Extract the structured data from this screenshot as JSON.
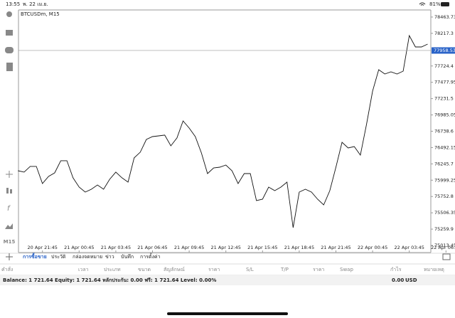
{
  "status_bar": {
    "time": "13:55",
    "date": "พ. 22 เม.ย.",
    "battery": "81%"
  },
  "sidebar": {
    "timeframe": "M15"
  },
  "chart_data": {
    "type": "line",
    "title": "BTCUSDm, M15",
    "x": [
      "20 Apr 19:45",
      "20 Apr 20:15",
      "20 Apr 20:45",
      "20 Apr 21:15",
      "20 Apr 21:45",
      "20 Apr 22:15",
      "20 Apr 22:45",
      "20 Apr 23:15",
      "20 Apr 23:45",
      "21 Apr 00:15",
      "21 Apr 00:45",
      "21 Apr 01:15",
      "21 Apr 01:45",
      "21 Apr 02:15",
      "21 Apr 02:45",
      "21 Apr 03:15",
      "21 Apr 03:45",
      "21 Apr 04:15",
      "21 Apr 04:45",
      "21 Apr 05:15",
      "21 Apr 05:45",
      "21 Apr 06:15",
      "21 Apr 06:45",
      "21 Apr 07:15",
      "21 Apr 07:45",
      "21 Apr 08:15",
      "21 Apr 08:45",
      "21 Apr 09:15",
      "21 Apr 09:45",
      "21 Apr 10:15",
      "21 Apr 10:45",
      "21 Apr 11:15",
      "21 Apr 11:45",
      "21 Apr 12:15",
      "21 Apr 12:45",
      "21 Apr 13:15",
      "21 Apr 13:45",
      "21 Apr 14:15",
      "21 Apr 14:45",
      "21 Apr 15:15",
      "21 Apr 15:45",
      "21 Apr 16:15",
      "21 Apr 16:45",
      "21 Apr 17:15",
      "21 Apr 17:45",
      "21 Apr 18:15",
      "21 Apr 18:45",
      "21 Apr 19:15",
      "21 Apr 19:45",
      "21 Apr 20:15",
      "21 Apr 20:45",
      "21 Apr 21:15",
      "21 Apr 21:45",
      "21 Apr 22:15",
      "21 Apr 22:45",
      "21 Apr 23:15",
      "21 Apr 23:45",
      "22 Apr 00:15",
      "22 Apr 00:45",
      "22 Apr 01:15",
      "22 Apr 01:45",
      "22 Apr 02:15",
      "22 Apr 02:45",
      "22 Apr 03:15",
      "22 Apr 03:45",
      "22 Apr 04:15",
      "22 Apr 04:45",
      "22 Apr 05:15"
    ],
    "series": [
      {
        "color": "#111111",
        "values": [
          76142,
          76121,
          76207,
          76207,
          75949,
          76056,
          76110,
          76293,
          76293,
          76035,
          75895,
          75820,
          75863,
          75927,
          75863,
          76013,
          76121,
          76035,
          75970,
          76336,
          76422,
          76615,
          76658,
          76669,
          76680,
          76518,
          76637,
          76894,
          76787,
          76658,
          76411,
          76099,
          76185,
          76196,
          76228,
          76142,
          75949,
          76099,
          76099,
          75691,
          75712,
          75895,
          75841,
          75895,
          75970,
          75282,
          75820,
          75863,
          75820,
          75712,
          75626,
          75841,
          76196,
          76572,
          76486,
          76507,
          76378,
          76841,
          77346,
          77668,
          77604,
          77636,
          77604,
          77647,
          78184,
          78012,
          78012,
          78055
        ]
      }
    ],
    "ylim": [
      74906,
      78560
    ],
    "yticks": [
      78463.73,
      78217.3,
      77724.4,
      77477.95,
      77231.5,
      76985.05,
      76738.6,
      76492.15,
      76245.7,
      75999.25,
      75752.8,
      75506.35,
      75259.9,
      75013.45
    ],
    "xticks": [
      "20 Apr 21:45",
      "21 Apr 00:45",
      "21 Apr 03:45",
      "21 Apr 06:45",
      "21 Apr 09:45",
      "21 Apr 12:45",
      "21 Apr 15:45",
      "21 Apr 18:45",
      "21 Apr 21:45",
      "22 Apr 00:45",
      "22 Apr 03:45",
      "22 Apr 06:45"
    ],
    "current_price": 77958.53,
    "current_price_color": "#2a63c8"
  },
  "tabs": [
    "การซื้อขาย",
    "ประวัติ",
    "กล่องจดหมาย",
    "ข่าว",
    "บันทึก",
    "การตั้งค่า"
  ],
  "active_tab_color": "#2a63c8",
  "table_headers": [
    "คำสั่ง",
    "เวลา",
    "ประเภท",
    "ขนาด",
    "สัญลักษณ์",
    "ราคา",
    "S/L",
    "T/P",
    "ราคา",
    "Swap",
    "กำไร",
    "หมายเหตุ"
  ],
  "balance": {
    "text": "Balance: 1 721.64 Equity: 1 721.64 หลักประกัน: 0.00 ฟรี: 1 721.64 Level: 0.00%",
    "profit": "0.00",
    "currency": "USD"
  }
}
